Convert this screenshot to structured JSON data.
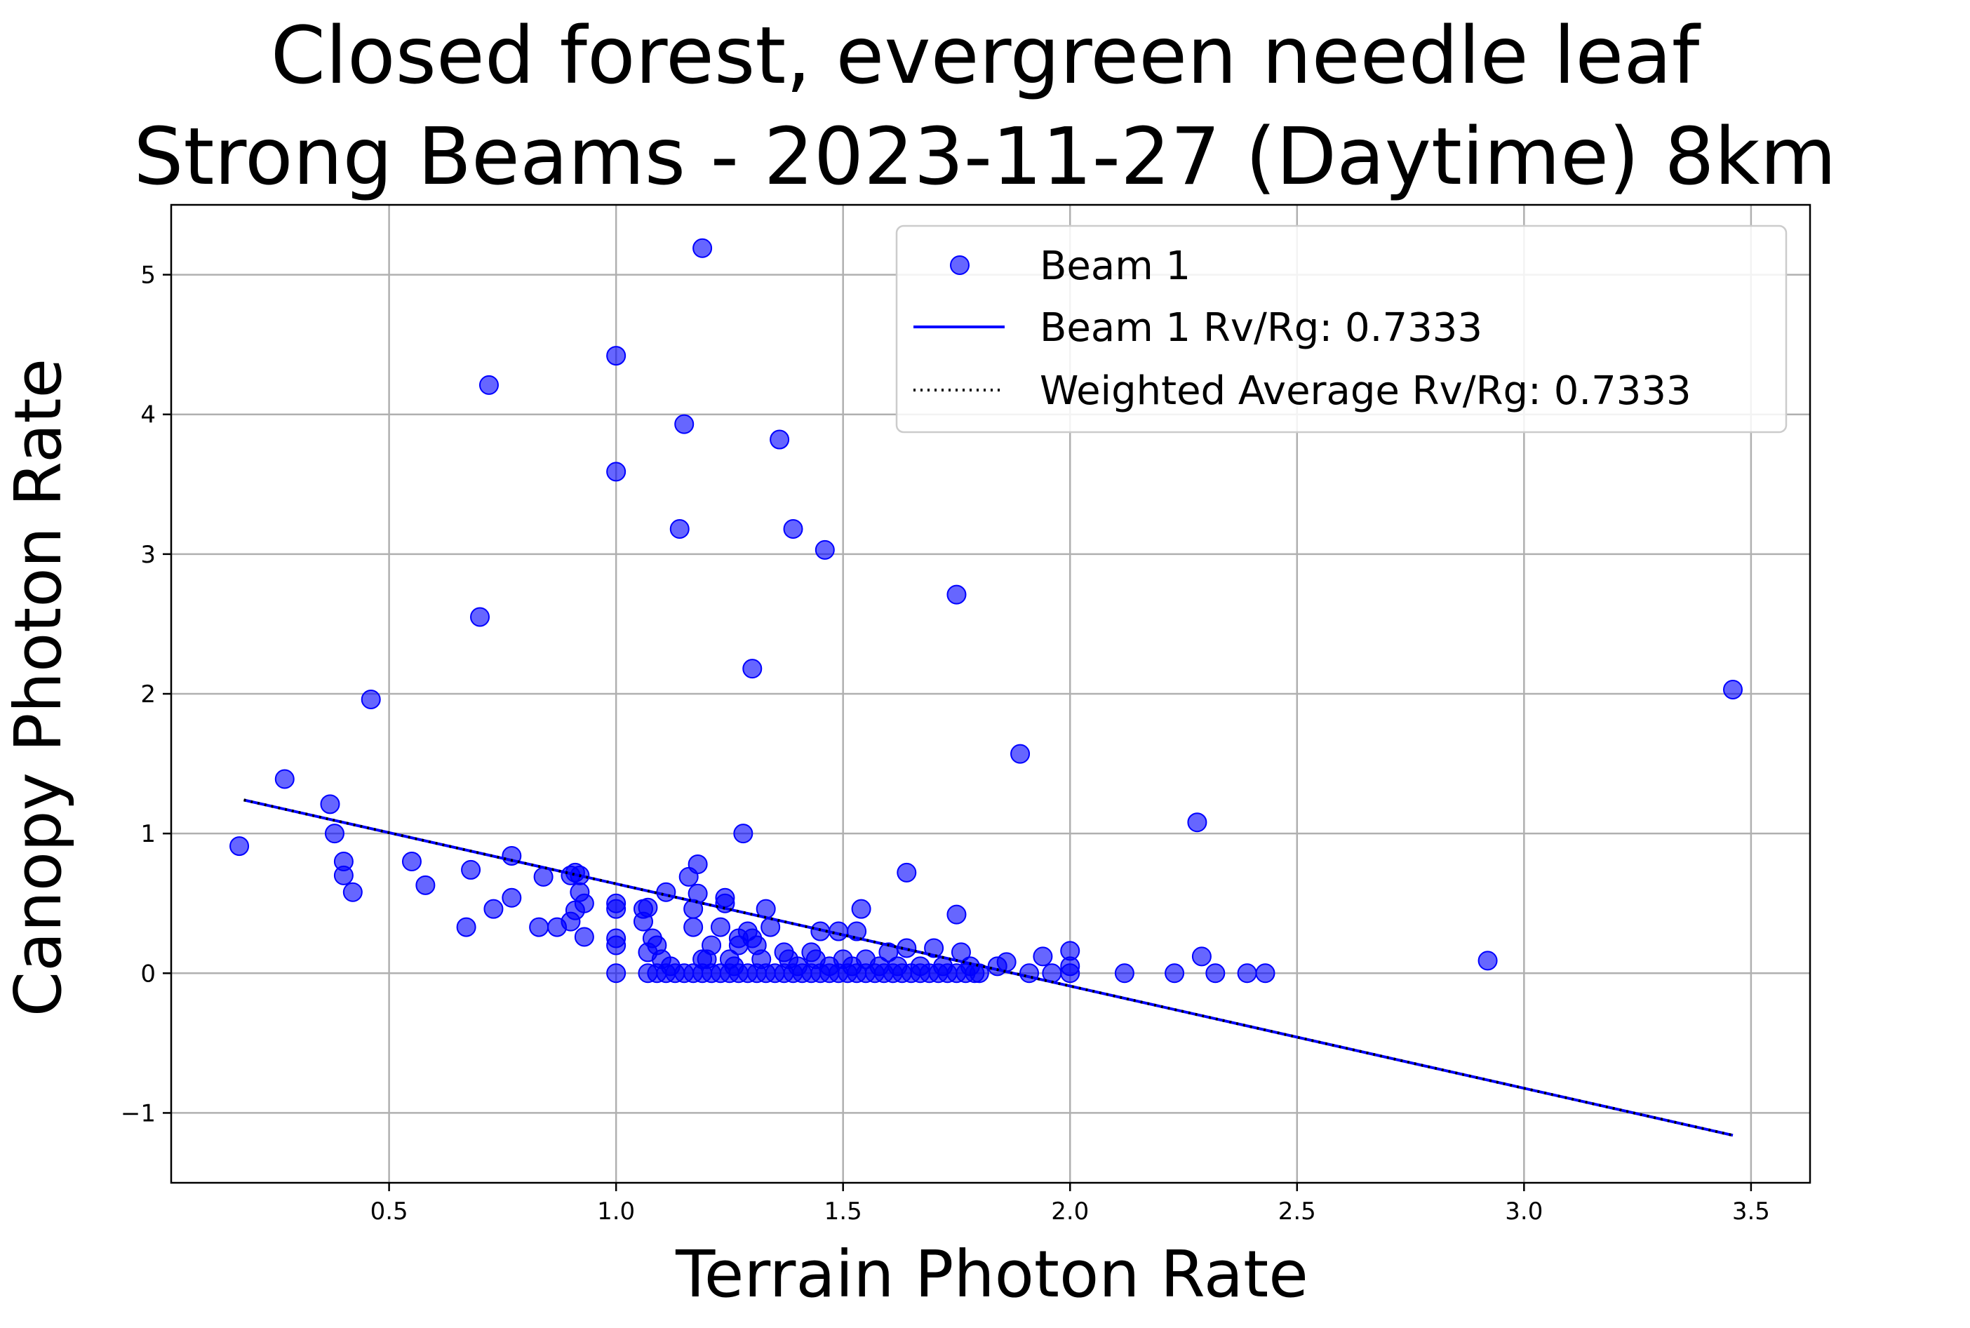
{
  "chart_data": {
    "type": "scatter",
    "title": "Closed forest, evergreen needle leaf",
    "subtitle": "Strong Beams - 2023-11-27 (Daytime) 8km",
    "xlabel": "Terrain Photon Rate",
    "ylabel": "Canopy Photon Rate",
    "xlim": [
      0.02,
      3.63
    ],
    "ylim": [
      -1.5,
      5.5
    ],
    "x_ticks": [
      0.5,
      1.0,
      1.5,
      2.0,
      2.5,
      3.0,
      3.5
    ],
    "x_tick_labels": [
      "0.5",
      "1.0",
      "1.5",
      "2.0",
      "2.5",
      "3.0",
      "3.5"
    ],
    "y_ticks": [
      -1,
      0,
      1,
      2,
      3,
      4,
      5
    ],
    "y_tick_labels": [
      "−1",
      "0",
      "1",
      "2",
      "3",
      "4",
      "5"
    ],
    "grid": true,
    "legend_position": "top-right",
    "legend": [
      {
        "label": "Beam 1",
        "kind": "marker",
        "color": "#0000ff"
      },
      {
        "label": "Beam 1 Rv/Rg: 0.7333",
        "kind": "line",
        "color": "#0000ff"
      },
      {
        "label": "Weighted Average Rv/Rg: 0.7333",
        "kind": "dotted-line",
        "color": "#000000"
      }
    ],
    "series": [
      {
        "name": "Beam 1",
        "kind": "scatter",
        "color": "#0000ff",
        "points": [
          [
            0.17,
            0.91
          ],
          [
            0.27,
            1.39
          ],
          [
            0.37,
            1.21
          ],
          [
            0.38,
            1.0
          ],
          [
            0.4,
            0.8
          ],
          [
            0.4,
            0.7
          ],
          [
            0.42,
            0.58
          ],
          [
            0.46,
            1.96
          ],
          [
            0.55,
            0.8
          ],
          [
            0.58,
            0.63
          ],
          [
            0.67,
            0.33
          ],
          [
            0.68,
            0.74
          ],
          [
            0.7,
            2.55
          ],
          [
            0.72,
            4.21
          ],
          [
            0.73,
            0.46
          ],
          [
            0.77,
            0.54
          ],
          [
            0.77,
            0.84
          ],
          [
            0.83,
            0.33
          ],
          [
            0.84,
            0.69
          ],
          [
            0.87,
            0.33
          ],
          [
            0.9,
            0.7
          ],
          [
            0.9,
            0.37
          ],
          [
            0.91,
            0.45
          ],
          [
            0.91,
            0.72
          ],
          [
            0.92,
            0.58
          ],
          [
            0.92,
            0.7
          ],
          [
            0.93,
            0.5
          ],
          [
            0.93,
            0.26
          ],
          [
            1.0,
            4.42
          ],
          [
            1.0,
            3.59
          ],
          [
            1.0,
            0.5
          ],
          [
            1.0,
            0.46
          ],
          [
            1.0,
            0.25
          ],
          [
            1.0,
            0.2
          ],
          [
            1.0,
            0.0
          ],
          [
            1.06,
            0.46
          ],
          [
            1.06,
            0.37
          ],
          [
            1.07,
            0.47
          ],
          [
            1.07,
            0.15
          ],
          [
            1.08,
            0.25
          ],
          [
            1.09,
            0.2
          ],
          [
            1.1,
            0.1
          ],
          [
            1.11,
            0.58
          ],
          [
            1.12,
            0.05
          ],
          [
            1.14,
            3.18
          ],
          [
            1.15,
            3.93
          ],
          [
            1.16,
            0.69
          ],
          [
            1.17,
            0.46
          ],
          [
            1.17,
            0.33
          ],
          [
            1.18,
            0.57
          ],
          [
            1.18,
            0.78
          ],
          [
            1.19,
            5.19
          ],
          [
            1.19,
            0.1
          ],
          [
            1.2,
            0.1
          ],
          [
            1.21,
            0.2
          ],
          [
            1.23,
            0.33
          ],
          [
            1.24,
            0.54
          ],
          [
            1.24,
            0.5
          ],
          [
            1.25,
            0.1
          ],
          [
            1.26,
            0.05
          ],
          [
            1.27,
            0.25
          ],
          [
            1.27,
            0.2
          ],
          [
            1.28,
            1.0
          ],
          [
            1.29,
            0.3
          ],
          [
            1.3,
            0.25
          ],
          [
            1.3,
            2.18
          ],
          [
            1.31,
            0.2
          ],
          [
            1.32,
            0.1
          ],
          [
            1.33,
            0.46
          ],
          [
            1.34,
            0.33
          ],
          [
            1.36,
            3.82
          ],
          [
            1.37,
            0.15
          ],
          [
            1.38,
            0.1
          ],
          [
            1.39,
            3.18
          ],
          [
            1.4,
            0.05
          ],
          [
            1.43,
            0.15
          ],
          [
            1.44,
            0.1
          ],
          [
            1.45,
            0.3
          ],
          [
            1.46,
            3.03
          ],
          [
            1.47,
            0.05
          ],
          [
            1.49,
            0.3
          ],
          [
            1.5,
            0.1
          ],
          [
            1.52,
            0.05
          ],
          [
            1.53,
            0.3
          ],
          [
            1.54,
            0.46
          ],
          [
            1.55,
            0.1
          ],
          [
            1.58,
            0.05
          ],
          [
            1.6,
            0.15
          ],
          [
            1.62,
            0.05
          ],
          [
            1.64,
            0.72
          ],
          [
            1.64,
            0.18
          ],
          [
            1.67,
            0.05
          ],
          [
            1.7,
            0.18
          ],
          [
            1.72,
            0.05
          ],
          [
            1.75,
            2.71
          ],
          [
            1.75,
            0.42
          ],
          [
            1.76,
            0.15
          ],
          [
            1.78,
            0.05
          ],
          [
            1.8,
            0.0
          ],
          [
            1.84,
            0.05
          ],
          [
            1.86,
            0.08
          ],
          [
            1.89,
            1.57
          ],
          [
            1.91,
            0.0
          ],
          [
            1.94,
            0.12
          ],
          [
            1.96,
            0.0
          ],
          [
            2.0,
            0.16
          ],
          [
            2.0,
            0.05
          ],
          [
            2.0,
            0.0
          ],
          [
            2.12,
            0.0
          ],
          [
            2.23,
            0.0
          ],
          [
            2.28,
            1.08
          ],
          [
            2.29,
            0.12
          ],
          [
            2.32,
            0.0
          ],
          [
            2.39,
            0.0
          ],
          [
            2.43,
            0.0
          ],
          [
            2.92,
            0.09
          ],
          [
            3.46,
            2.03
          ],
          [
            1.07,
            0.0
          ],
          [
            1.09,
            0.0
          ],
          [
            1.11,
            0.0
          ],
          [
            1.13,
            0.0
          ],
          [
            1.15,
            0.0
          ],
          [
            1.17,
            0.0
          ],
          [
            1.19,
            0.0
          ],
          [
            1.21,
            0.0
          ],
          [
            1.23,
            0.0
          ],
          [
            1.25,
            0.0
          ],
          [
            1.27,
            0.0
          ],
          [
            1.29,
            0.0
          ],
          [
            1.31,
            0.0
          ],
          [
            1.33,
            0.0
          ],
          [
            1.35,
            0.0
          ],
          [
            1.37,
            0.0
          ],
          [
            1.39,
            0.0
          ],
          [
            1.41,
            0.0
          ],
          [
            1.43,
            0.0
          ],
          [
            1.45,
            0.0
          ],
          [
            1.47,
            0.0
          ],
          [
            1.49,
            0.0
          ],
          [
            1.51,
            0.0
          ],
          [
            1.53,
            0.0
          ],
          [
            1.55,
            0.0
          ],
          [
            1.57,
            0.0
          ],
          [
            1.59,
            0.0
          ],
          [
            1.61,
            0.0
          ],
          [
            1.63,
            0.0
          ],
          [
            1.65,
            0.0
          ],
          [
            1.67,
            0.0
          ],
          [
            1.69,
            0.0
          ],
          [
            1.71,
            0.0
          ],
          [
            1.73,
            0.0
          ],
          [
            1.75,
            0.0
          ],
          [
            1.77,
            0.0
          ],
          [
            1.79,
            0.0
          ]
        ]
      },
      {
        "name": "Beam 1 Rv/Rg: 0.7333",
        "kind": "line",
        "color": "#0000ff",
        "points": [
          [
            0.18,
            1.24
          ],
          [
            3.46,
            -1.16
          ]
        ]
      },
      {
        "name": "Weighted Average Rv/Rg: 0.7333",
        "kind": "dotted-line",
        "color": "#000000",
        "points": [
          [
            0.18,
            1.24
          ],
          [
            3.46,
            -1.16
          ]
        ]
      }
    ]
  }
}
